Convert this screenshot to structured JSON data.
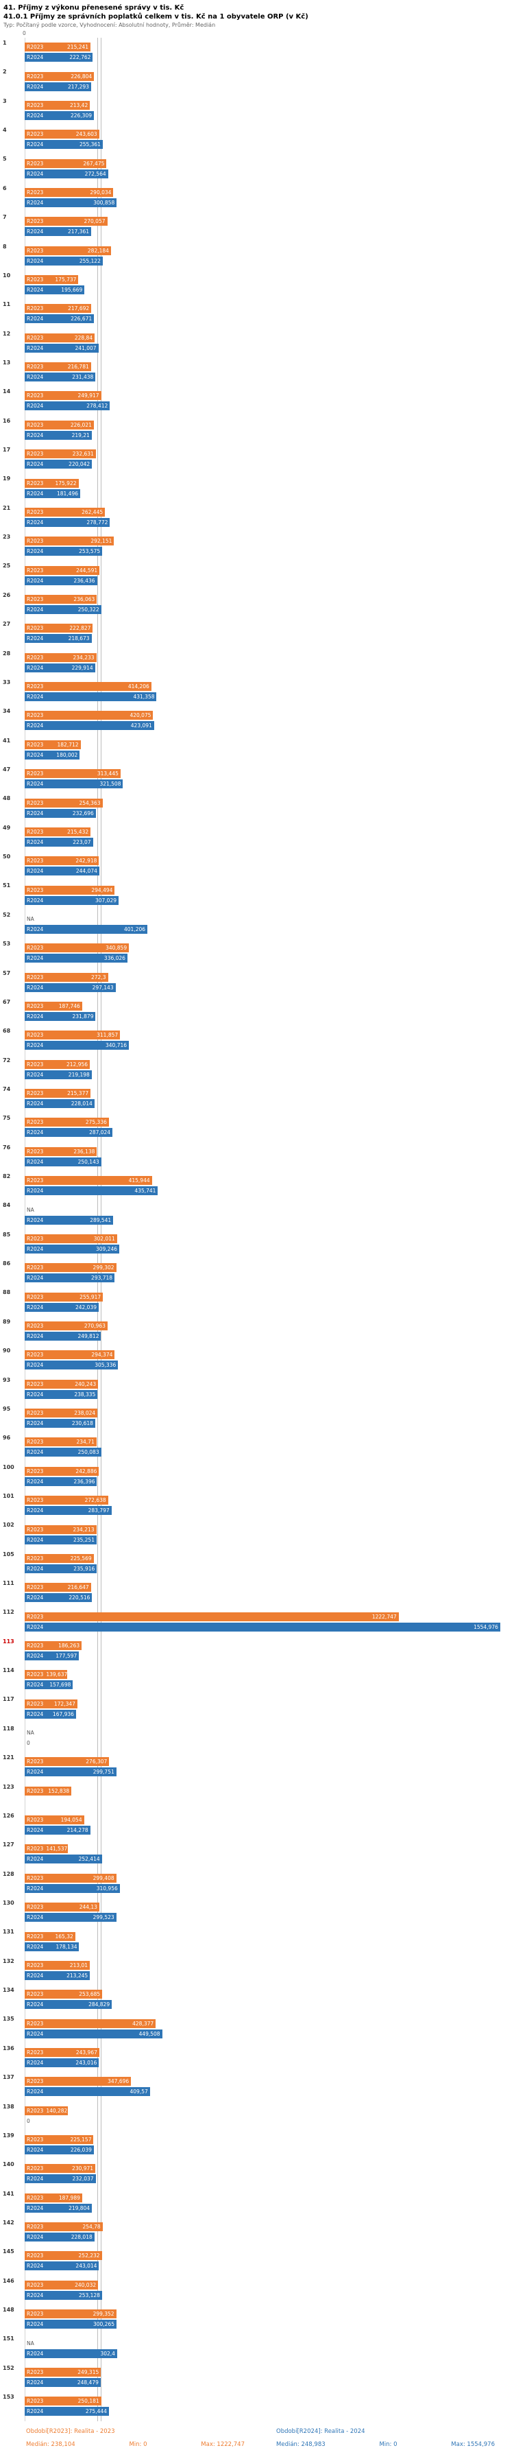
{
  "header": {
    "title1": "41. Příjmy z výkonu přenesené správy v tis. Kč",
    "title2": "41.0.1 Příjmy ze správních poplatků celkem v tis. Kč na 1 obyvatele ORP (v Kč)",
    "meta": "Typ: Počítaný podle vzorce, Vyhodnocení: Absolutní hodnoty, Průměr: Medián"
  },
  "axis": {
    "zero_label": "0"
  },
  "legend": {
    "r2023": {
      "period": "Období[R2023]: Realita - 2023",
      "median": "Medián: 238,104",
      "min": "Min: 0",
      "max": "Max: 1222,747"
    },
    "r2024": {
      "period": "Období[R2024]: Realita - 2024",
      "median": "Medián: 248,983",
      "min": "Min: 0",
      "max": "Max: 1554,976"
    }
  },
  "chart_data": {
    "type": "bar",
    "orientation": "horizontal",
    "title": "41. Příjmy z výkonu přenesené správy v tis. Kč",
    "subtitle": "41.0.1 Příjmy ze správních poplatků celkem v tis. Kč na 1 obyvatele ORP (v Kč)",
    "value_format": "czech-decimal-comma",
    "xlim": [
      0,
      1600
    ],
    "grid": false,
    "legend_position": "bottom",
    "highlight_category": "113",
    "highlight_color": "#cc0000",
    "median_line_color": "#bdbdbd",
    "categories": [
      "1",
      "2",
      "3",
      "4",
      "5",
      "6",
      "7",
      "8",
      "10",
      "11",
      "12",
      "13",
      "14",
      "16",
      "17",
      "19",
      "21",
      "23",
      "25",
      "26",
      "27",
      "28",
      "33",
      "34",
      "41",
      "47",
      "48",
      "49",
      "50",
      "51",
      "52",
      "53",
      "57",
      "67",
      "68",
      "72",
      "74",
      "75",
      "76",
      "82",
      "84",
      "85",
      "86",
      "88",
      "89",
      "90",
      "93",
      "95",
      "96",
      "100",
      "101",
      "102",
      "105",
      "111",
      "112",
      "113",
      "114",
      "117",
      "118",
      "121",
      "123",
      "126",
      "127",
      "128",
      "130",
      "131",
      "132",
      "134",
      "135",
      "136",
      "137",
      "138",
      "139",
      "140",
      "141",
      "142",
      "145",
      "146",
      "148",
      "151",
      "152",
      "153"
    ],
    "series": [
      {
        "name": "R2023",
        "color": "#ed7d31",
        "median": 238.104,
        "min": 0,
        "max": 1222.747,
        "values": [
          215.241,
          226.804,
          213.42,
          243.603,
          267.475,
          290.034,
          270.057,
          282.184,
          175.737,
          217.692,
          228.84,
          216.781,
          249.917,
          226.021,
          232.631,
          175.922,
          262.445,
          292.151,
          244.591,
          236.063,
          222.827,
          234.233,
          414.206,
          420.075,
          182.712,
          313.445,
          254.363,
          215.432,
          242.918,
          294.494,
          "NA",
          340.859,
          272.3,
          187.746,
          311.857,
          212.956,
          215.377,
          275.336,
          236.138,
          415.944,
          "NA",
          302.011,
          299.302,
          255.917,
          270.963,
          294.374,
          240.243,
          238.024,
          234.71,
          242.886,
          272.638,
          234.213,
          225.569,
          216.647,
          1222.747,
          186.263,
          139.637,
          172.347,
          "NA",
          276.307,
          152.838,
          194.054,
          141.537,
          299.408,
          244.13,
          165.32,
          213.01,
          253.685,
          428.377,
          243.967,
          347.696,
          140.282,
          225.157,
          230.971,
          187.989,
          254.78,
          252.232,
          240.032,
          299.352,
          "NA",
          249.315,
          250.181
        ]
      },
      {
        "name": "R2024",
        "color": "#2e75b6",
        "median": 248.983,
        "min": 0,
        "max": 1554.976,
        "values": [
          222.762,
          217.293,
          226.309,
          255.361,
          272.564,
          300.858,
          217.361,
          255.122,
          195.669,
          226.671,
          241.007,
          231.438,
          278.412,
          219.21,
          220.042,
          181.496,
          278.772,
          253.575,
          236.436,
          250.322,
          218.673,
          229.914,
          431.358,
          423.091,
          180.002,
          321.508,
          232.696,
          223.07,
          244.074,
          307.029,
          401.206,
          336.026,
          297.143,
          231.879,
          340.716,
          219.198,
          228.014,
          287.024,
          250.143,
          435.741,
          289.541,
          309.246,
          293.718,
          242.039,
          249.812,
          305.336,
          238.335,
          230.618,
          250.083,
          236.396,
          283.797,
          235.251,
          235.916,
          220.516,
          1554.976,
          177.597,
          157.698,
          167.936,
          0,
          299.751,
          null,
          214.278,
          252.414,
          310.956,
          299.523,
          178.134,
          213.245,
          284.829,
          449.508,
          243.016,
          409.57,
          0,
          226.039,
          232.037,
          219.804,
          228.018,
          243.014,
          253.128,
          300.265,
          302.4,
          248.479,
          275.444
        ]
      }
    ]
  }
}
